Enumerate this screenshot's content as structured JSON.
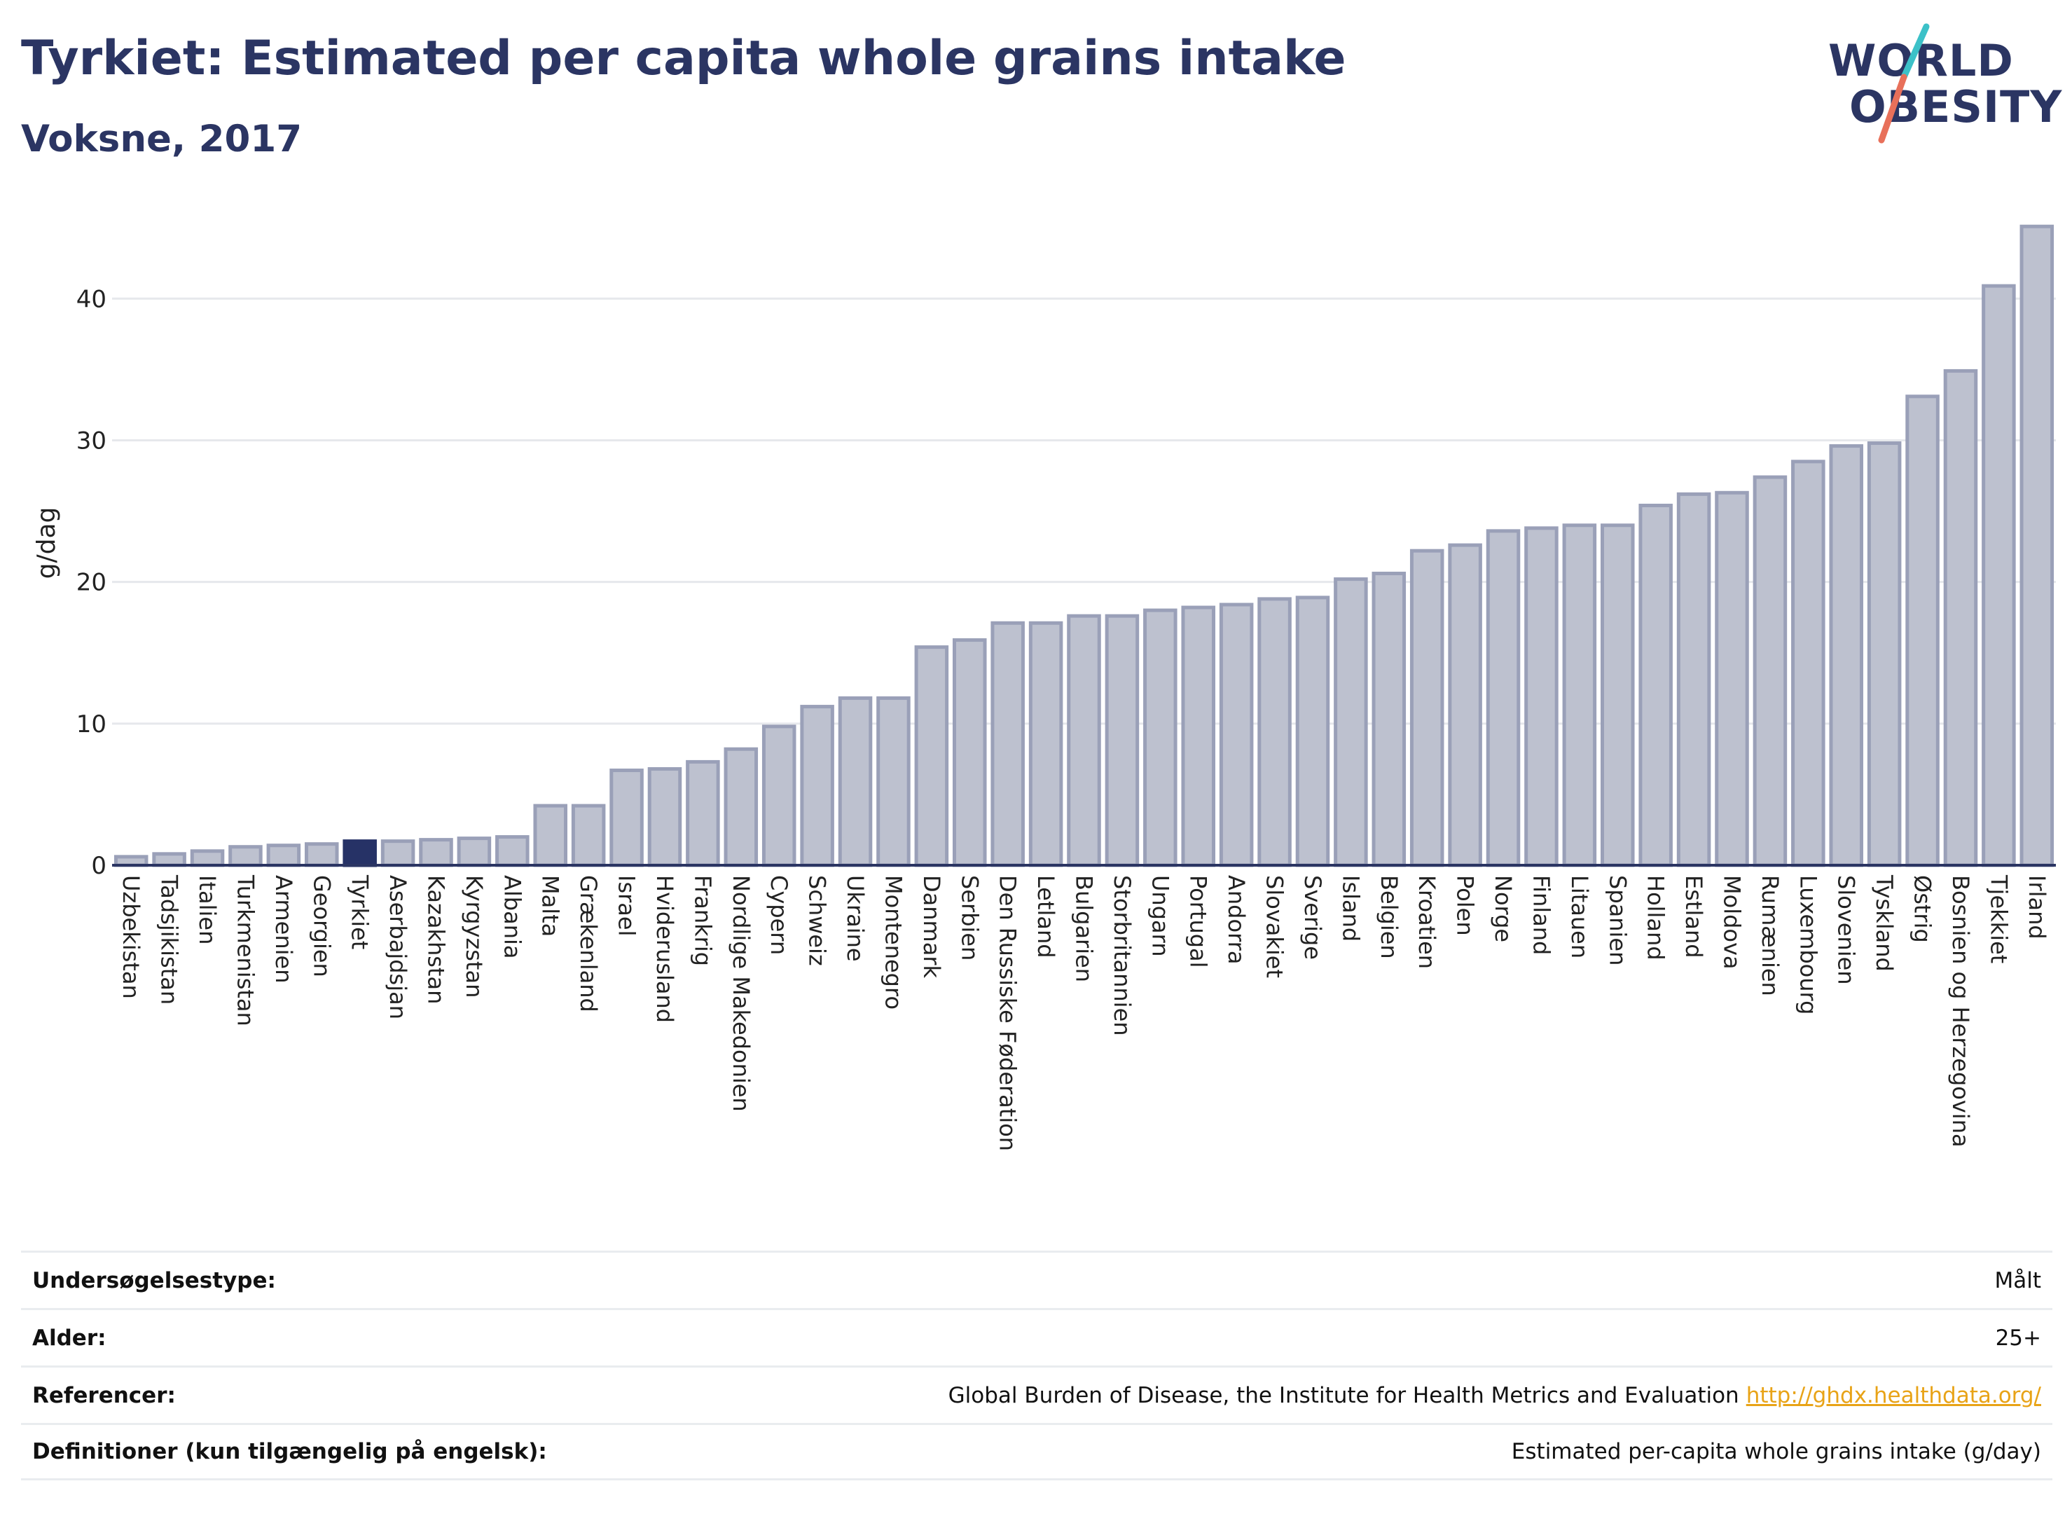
{
  "header": {
    "title": "Tyrkiet: Estimated per capita whole grains intake",
    "subtitle": "Voksne, 2017"
  },
  "logo": {
    "line1": "WORLD",
    "line2": "OBESITY",
    "colors": {
      "teal": "#3cc1c8",
      "coral": "#e8705a"
    }
  },
  "colors": {
    "bar": "#bdc1cf",
    "bar_stroke": "#9aa0b8",
    "highlight": "#263266",
    "grid": "#e6e8ec",
    "axis": "#2b3563"
  },
  "chart_data": {
    "type": "bar",
    "ylabel": "g/dag",
    "ylim": [
      0,
      46
    ],
    "yticks": [
      0,
      10,
      20,
      30,
      40
    ],
    "grid": true,
    "highlight": "Tyrkiet",
    "categories": [
      "Uzbekistan",
      "Tadsjikistan",
      "Italien",
      "Turkmenistan",
      "Armenien",
      "Georgien",
      "Tyrkiet",
      "Aserbajdsjan",
      "Kazakhstan",
      "Kyrgyzstan",
      "Albania",
      "Malta",
      "Grækenland",
      "Israel",
      "Hviderusland",
      "Frankrig",
      "Nordlige Makedonien",
      "Cypern",
      "Schweiz",
      "Ukraine",
      "Montenegro",
      "Danmark",
      "Serbien",
      "Den Russiske Føderation",
      "Letland",
      "Bulgarien",
      "Storbritannien",
      "Ungarn",
      "Portugal",
      "Andorra",
      "Slovakiet",
      "Sverige",
      "Island",
      "Belgien",
      "Kroatien",
      "Polen",
      "Norge",
      "Finland",
      "Litauen",
      "Spanien",
      "Holland",
      "Estland",
      "Moldova",
      "Rumænien",
      "Luxembourg",
      "Slovenien",
      "Tyskland",
      "Østrig",
      "Bosnien og Herzegovina",
      "Tjekkiet",
      "Irland"
    ],
    "values": [
      0.6,
      0.8,
      1.0,
      1.3,
      1.4,
      1.5,
      1.7,
      1.7,
      1.8,
      1.9,
      2.0,
      4.2,
      4.2,
      6.7,
      6.8,
      7.3,
      8.2,
      9.8,
      11.2,
      11.8,
      11.8,
      15.4,
      15.9,
      17.1,
      17.1,
      17.6,
      17.6,
      18.0,
      18.2,
      18.4,
      18.8,
      18.9,
      20.2,
      20.6,
      22.2,
      22.6,
      23.6,
      23.8,
      24.0,
      24.0,
      25.4,
      26.2,
      26.3,
      27.4,
      28.5,
      29.6,
      29.8,
      33.1,
      34.9,
      40.9,
      45.1
    ]
  },
  "meta": {
    "rows": [
      {
        "label": "Undersøgelsestype:",
        "value": "Målt"
      },
      {
        "label": "Alder:",
        "value": "25+"
      },
      {
        "label": "Referencer:",
        "value": "Global Burden of Disease, the Institute for Health Metrics and Evaluation",
        "link": "http://ghdx.healthdata.org/"
      },
      {
        "label": "Definitioner (kun tilgængelig på engelsk):",
        "value": "Estimated per-capita whole grains intake (g/day)"
      }
    ]
  }
}
